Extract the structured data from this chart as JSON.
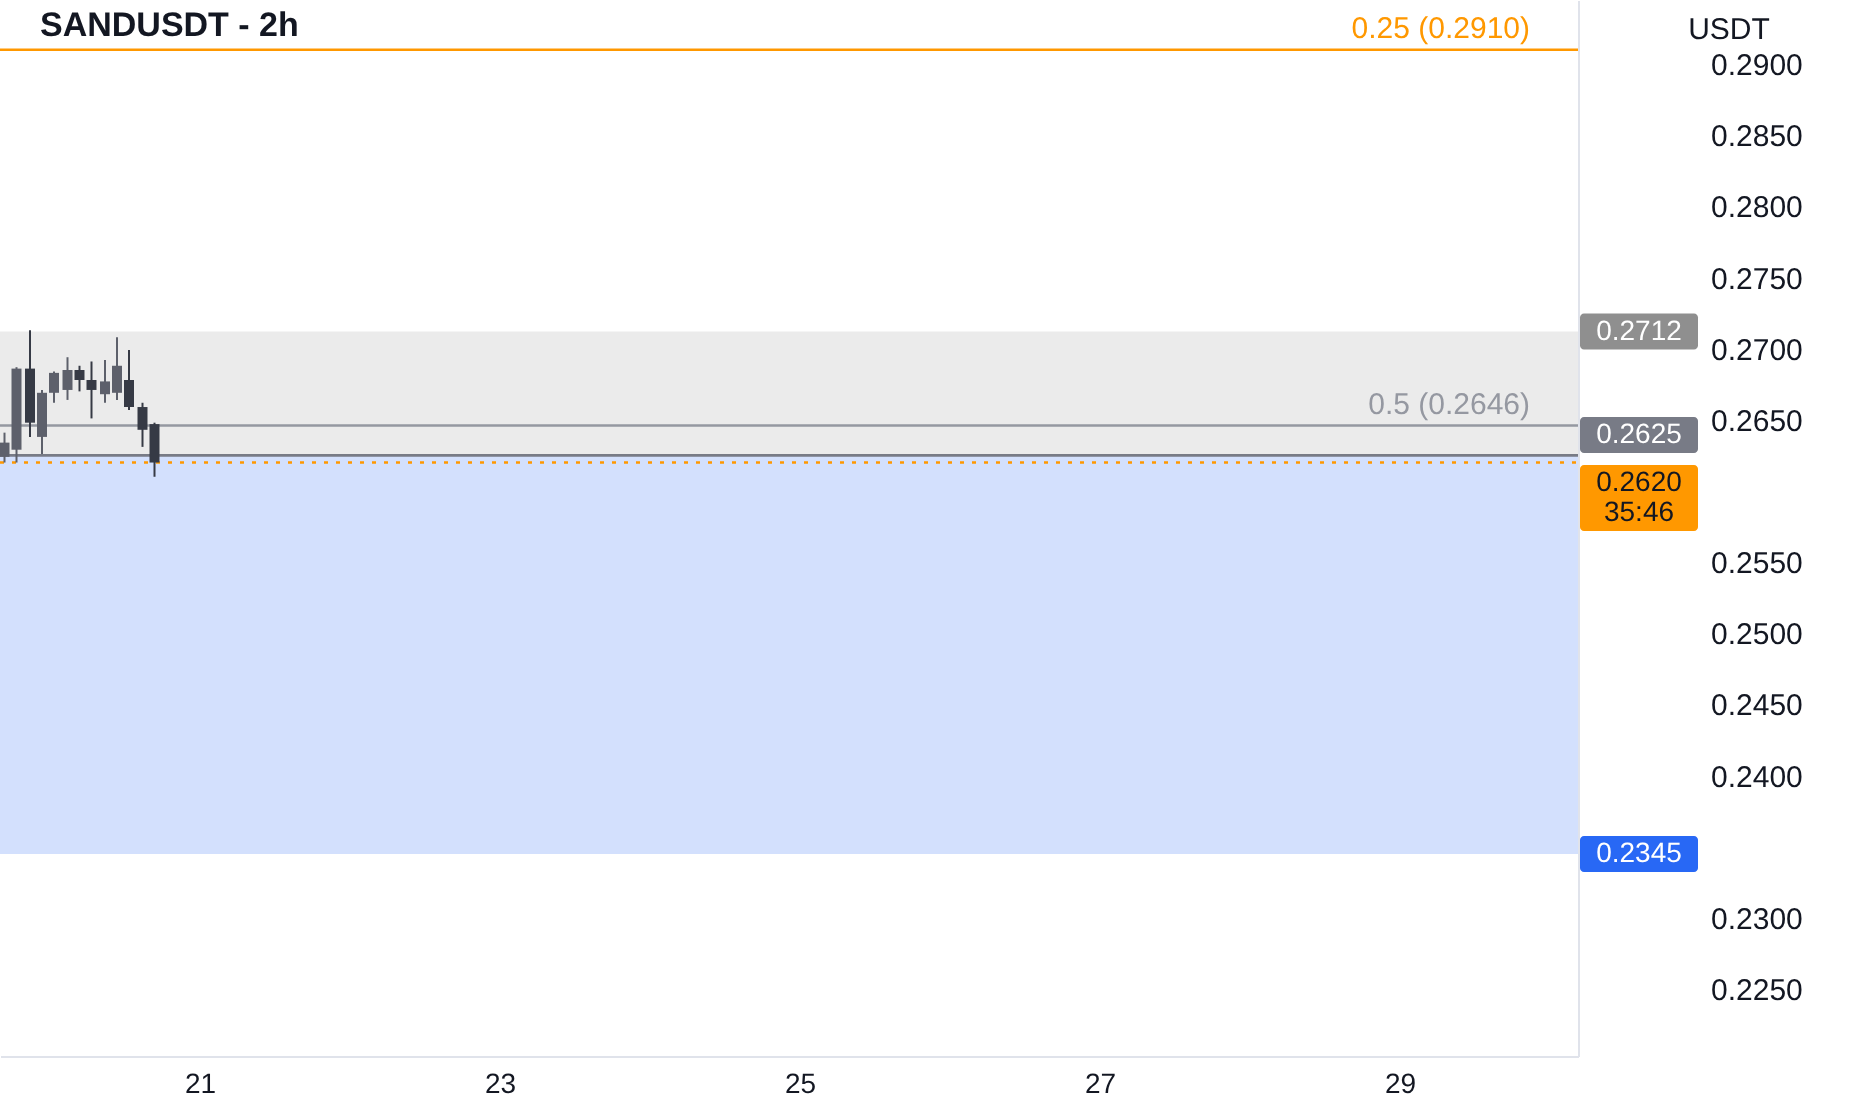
{
  "chart_data": {
    "type": "candlestick",
    "title": "SANDUSDT - 2h",
    "ylabel": "USDT",
    "x": [
      19.7,
      19.78,
      19.87,
      19.95,
      20.03,
      20.12,
      20.2,
      20.28,
      20.37,
      20.45,
      20.53,
      20.62,
      20.7
    ],
    "ohlc": [
      [
        0.2624,
        0.2641,
        0.262,
        0.2634
      ],
      [
        0.2629,
        0.2687,
        0.262,
        0.2686
      ],
      [
        0.2686,
        0.2713,
        0.2638,
        0.2648
      ],
      [
        0.2638,
        0.2671,
        0.2626,
        0.2669
      ],
      [
        0.2669,
        0.2684,
        0.2662,
        0.2683
      ],
      [
        0.2671,
        0.2694,
        0.2664,
        0.2685
      ],
      [
        0.2685,
        0.2688,
        0.267,
        0.2678
      ],
      [
        0.2678,
        0.2691,
        0.2651,
        0.2671
      ],
      [
        0.2668,
        0.2692,
        0.2662,
        0.2677
      ],
      [
        0.2669,
        0.2708,
        0.2664,
        0.2688
      ],
      [
        0.2678,
        0.2699,
        0.2657,
        0.2659
      ],
      [
        0.2659,
        0.2662,
        0.2631,
        0.2643
      ],
      [
        0.2647,
        0.2648,
        0.261,
        0.262
      ]
    ],
    "colors": [
      "#5d606b",
      "#5d606b",
      "#363a45",
      "#5d606b",
      "#5d606b",
      "#5d606b",
      "#363a45",
      "#363a45",
      "#5d606b",
      "#5d606b",
      "#363a45",
      "#363a45",
      "#363a45"
    ],
    "xlim": [
      19.67,
      30.19
    ],
    "xticks": [
      21,
      23,
      25,
      27,
      29
    ],
    "ylim": [
      0.2203,
      0.2945
    ],
    "yticks": [
      {
        "value": 0.225,
        "label": "0.2250"
      },
      {
        "value": 0.23,
        "label": "0.2300"
      },
      {
        "value": 0.24,
        "label": "0.2400"
      },
      {
        "value": 0.245,
        "label": "0.2450"
      },
      {
        "value": 0.25,
        "label": "0.2500"
      },
      {
        "value": 0.255,
        "label": "0.2550"
      },
      {
        "value": 0.265,
        "label": "0.2650"
      },
      {
        "value": 0.27,
        "label": "0.2700"
      },
      {
        "value": 0.275,
        "label": "0.2750"
      },
      {
        "value": 0.28,
        "label": "0.2800"
      },
      {
        "value": 0.285,
        "label": "0.2850"
      },
      {
        "value": 0.29,
        "label": "0.2900"
      }
    ],
    "ref_lines": [
      {
        "axis": "y",
        "value": 0.291,
        "color": "#ff9800"
      },
      {
        "axis": "y",
        "value": 0.2646,
        "color": "#9598a1"
      },
      {
        "axis": "y",
        "value": 0.2625,
        "label": "0.2625",
        "color": "#787b86"
      },
      {
        "axis": "y",
        "value": 0.262,
        "label": "0.2620",
        "color": "#ff9800",
        "line_style": "dotted"
      }
    ],
    "bands": [
      {
        "axis": "y",
        "from": 0.2625,
        "to": 0.2712,
        "label": "0.2712",
        "color": "#ebebeb"
      },
      {
        "axis": "y",
        "from": 0.2345,
        "to": 0.2625,
        "label": "0.2345",
        "color": "#d3e0fd"
      }
    ],
    "annotations": [
      {
        "text": "0.25 (0.2910)",
        "x": 29.87,
        "y": 0.291
      },
      {
        "text": "0.5 (0.2646)",
        "x": 29.87,
        "y": 0.2646
      },
      "35:46"
    ]
  }
}
